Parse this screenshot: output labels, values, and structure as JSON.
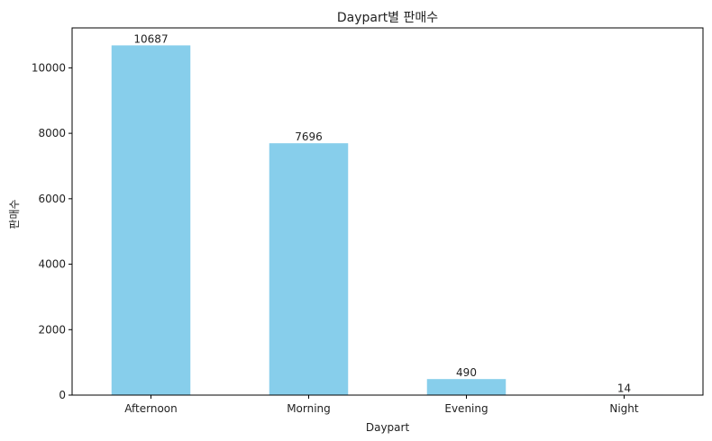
{
  "chart_data": {
    "type": "bar",
    "title": "Daypart별 판매수",
    "xlabel": "Daypart",
    "ylabel": "판매수",
    "categories": [
      "Afternoon",
      "Morning",
      "Evening",
      "Night"
    ],
    "values": [
      10687,
      7696,
      490,
      14
    ],
    "value_labels": [
      "10687",
      "7696",
      "490",
      "14"
    ],
    "yticks": [
      0,
      2000,
      4000,
      6000,
      8000,
      10000
    ],
    "ytick_labels": [
      "0",
      "2000",
      "4000",
      "6000",
      "8000",
      "10000"
    ],
    "ylim": [
      0,
      11221
    ],
    "grid": false,
    "colors": {
      "bar": "#87ceeb",
      "axis": "#000000"
    }
  }
}
